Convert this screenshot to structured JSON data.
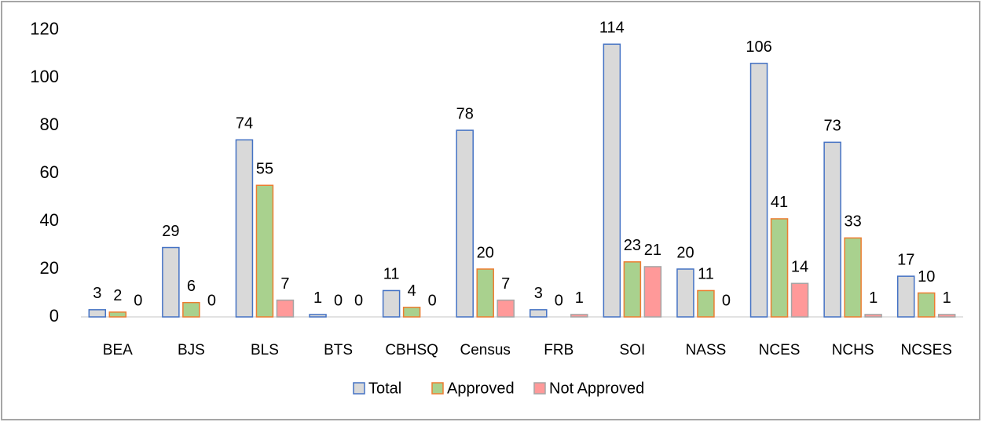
{
  "chart_data": {
    "type": "bar",
    "categories": [
      "BEA",
      "BJS",
      "BLS",
      "BTS",
      "CBHSQ",
      "Census",
      "FRB",
      "SOI",
      "NASS",
      "NCES",
      "NCHS",
      "NCSES"
    ],
    "series": [
      {
        "name": "Total",
        "color": "#d9d9d9",
        "stroke": "#4472c4",
        "values": [
          3,
          29,
          74,
          1,
          11,
          78,
          3,
          114,
          20,
          106,
          73,
          17
        ]
      },
      {
        "name": "Approved",
        "color": "#a9d18e",
        "stroke": "#ed7d31",
        "values": [
          2,
          6,
          55,
          0,
          4,
          20,
          0,
          23,
          11,
          41,
          33,
          10
        ]
      },
      {
        "name": "Not Approved",
        "color": "#ff9999",
        "stroke": "#a5a5a5",
        "values": [
          0,
          0,
          7,
          0,
          0,
          7,
          1,
          21,
          0,
          14,
          1,
          1
        ]
      }
    ],
    "ylim": [
      0,
      120
    ],
    "yticks": [
      0,
      20,
      40,
      60,
      80,
      100,
      120
    ],
    "grid": false,
    "legend": "bottom"
  }
}
